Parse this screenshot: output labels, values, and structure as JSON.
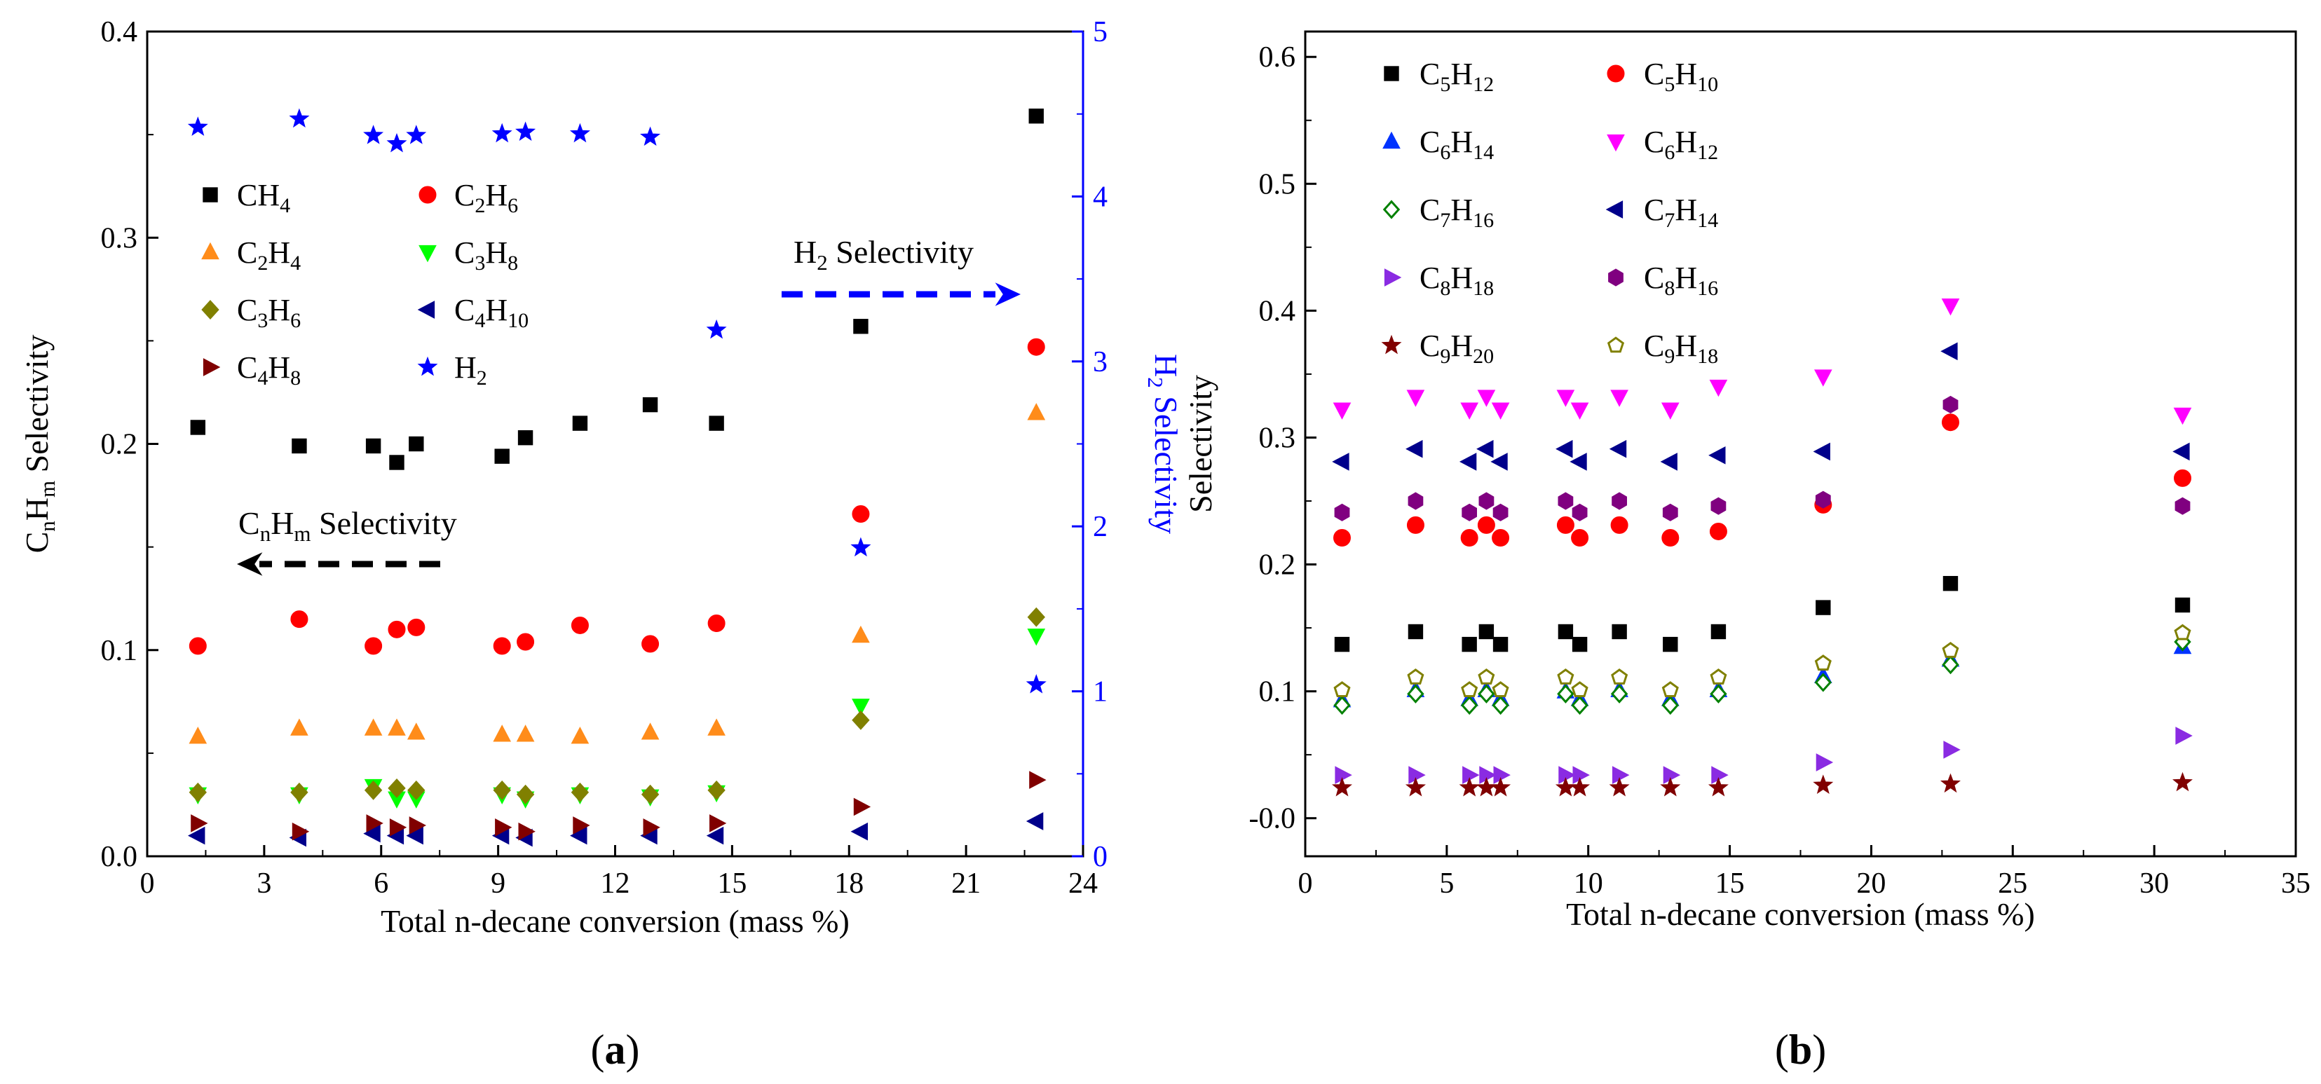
{
  "chart_data": [
    {
      "type": "scatter",
      "panel_label": {
        "open": "(",
        "letter": "a",
        "close": ")"
      },
      "xlabel": "Total n-decane conversion (mass %)",
      "ylabel_left": [
        {
          "t": "C"
        },
        {
          "t": "n",
          "sub": true
        },
        {
          "t": "H"
        },
        {
          "t": "m",
          "sub": true
        },
        {
          "t": "  Selectivity"
        }
      ],
      "ylabel_right": [
        {
          "t": "H"
        },
        {
          "t": "2",
          "sub": true
        },
        {
          "t": " Selectivity"
        }
      ],
      "xlim": [
        0,
        24
      ],
      "ylim_left": [
        0,
        0.4
      ],
      "ylim_right": [
        0,
        5
      ],
      "xticks": [
        "0",
        "3",
        "6",
        "9",
        "12",
        "15",
        "18",
        "21",
        "24"
      ],
      "yticks_left": [
        "0.0",
        "0.1",
        "0.2",
        "0.3",
        "0.4"
      ],
      "yticks_right": [
        "0",
        "1",
        "2",
        "3",
        "4",
        "5"
      ],
      "annotations": {
        "cnhm": [
          {
            "t": "C"
          },
          {
            "t": "n",
            "sub": true
          },
          {
            "t": "H"
          },
          {
            "t": "m",
            "sub": true
          },
          {
            "t": " Selectivity"
          }
        ],
        "h2": [
          {
            "t": "H"
          },
          {
            "t": "2",
            "sub": true
          },
          {
            "t": " Selectivity"
          }
        ]
      },
      "x": [
        1.3,
        3.9,
        5.8,
        6.4,
        6.9,
        9.1,
        9.7,
        11.1,
        12.9,
        14.6,
        18.3,
        22.8
      ],
      "series": [
        {
          "name": "CH4",
          "legend": [
            {
              "t": "CH"
            },
            {
              "t": "4",
              "sub": true
            }
          ],
          "marker": "square",
          "color": "#000000",
          "axis": "left",
          "values": [
            0.208,
            0.199,
            0.199,
            0.191,
            0.2,
            0.194,
            0.203,
            0.21,
            0.219,
            0.21,
            0.257,
            0.359
          ]
        },
        {
          "name": "C2H6",
          "legend": [
            {
              "t": "C"
            },
            {
              "t": "2",
              "sub": true
            },
            {
              "t": "H"
            },
            {
              "t": "6",
              "sub": true
            }
          ],
          "marker": "circle",
          "color": "#ff0000",
          "axis": "left",
          "values": [
            0.102,
            0.115,
            0.102,
            0.11,
            0.111,
            0.102,
            0.104,
            0.112,
            0.103,
            0.113,
            0.166,
            0.247
          ]
        },
        {
          "name": "C2H4",
          "legend": [
            {
              "t": "C"
            },
            {
              "t": "2",
              "sub": true
            },
            {
              "t": "H"
            },
            {
              "t": "4",
              "sub": true
            }
          ],
          "marker": "triangle-up",
          "color": "#ff8c1a",
          "axis": "left",
          "values": [
            0.058,
            0.062,
            0.062,
            0.062,
            0.06,
            0.059,
            0.059,
            0.058,
            0.06,
            0.062,
            0.107,
            0.215
          ]
        },
        {
          "name": "C3H8",
          "legend": [
            {
              "t": "C"
            },
            {
              "t": "3",
              "sub": true
            },
            {
              "t": "H"
            },
            {
              "t": "8",
              "sub": true
            }
          ],
          "marker": "triangle-down",
          "color": "#00ff00",
          "axis": "left",
          "values": [
            0.03,
            0.03,
            0.034,
            0.028,
            0.028,
            0.03,
            0.028,
            0.03,
            0.029,
            0.031,
            0.073,
            0.107
          ]
        },
        {
          "name": "C3H6",
          "legend": [
            {
              "t": "C"
            },
            {
              "t": "3",
              "sub": true
            },
            {
              "t": "H"
            },
            {
              "t": "6",
              "sub": true
            }
          ],
          "marker": "diamond",
          "color": "#808000",
          "axis": "left",
          "values": [
            0.031,
            0.031,
            0.032,
            0.033,
            0.032,
            0.032,
            0.03,
            0.031,
            0.03,
            0.032,
            0.066,
            0.116
          ]
        },
        {
          "name": "C4H10",
          "legend": [
            {
              "t": "C"
            },
            {
              "t": "4",
              "sub": true
            },
            {
              "t": "H"
            },
            {
              "t": "10",
              "sub": true
            }
          ],
          "marker": "triangle-left",
          "color": "#00008b",
          "axis": "left",
          "values": [
            0.01,
            0.009,
            0.011,
            0.01,
            0.01,
            0.01,
            0.009,
            0.01,
            0.01,
            0.01,
            0.012,
            0.017
          ]
        },
        {
          "name": "C4H8",
          "legend": [
            {
              "t": "C"
            },
            {
              "t": "4",
              "sub": true
            },
            {
              "t": "H"
            },
            {
              "t": "8",
              "sub": true
            }
          ],
          "marker": "triangle-right",
          "color": "#800000",
          "axis": "left",
          "values": [
            0.016,
            0.012,
            0.016,
            0.014,
            0.015,
            0.014,
            0.012,
            0.015,
            0.014,
            0.016,
            0.024,
            0.037
          ]
        },
        {
          "name": "H2",
          "legend": [
            {
              "t": "H"
            },
            {
              "t": "2",
              "sub": true
            }
          ],
          "marker": "star",
          "color": "#0000ff",
          "axis": "right",
          "values": [
            4.42,
            4.47,
            4.37,
            4.32,
            4.37,
            4.38,
            4.39,
            4.38,
            4.36,
            3.19,
            1.87,
            1.04
          ]
        }
      ]
    },
    {
      "type": "scatter",
      "panel_label": {
        "open": "(",
        "letter": "b",
        "close": ")"
      },
      "xlabel": "Total n-decane conversion (mass %)",
      "ylabel": "Selectivity",
      "xlim": [
        0,
        35
      ],
      "ylim": [
        -0.03,
        0.62
      ],
      "xticks": [
        "0",
        "5",
        "10",
        "15",
        "20",
        "25",
        "30",
        "35"
      ],
      "xtick_values": [
        0,
        5,
        10,
        15,
        20,
        25,
        30,
        35
      ],
      "yticks": [
        "-0.0",
        "0.1",
        "0.2",
        "0.3",
        "0.4",
        "0.5",
        "0.6"
      ],
      "ytick_values": [
        0,
        0.1,
        0.2,
        0.3,
        0.4,
        0.5,
        0.6
      ],
      "x": [
        1.3,
        3.9,
        5.8,
        6.4,
        6.9,
        9.2,
        9.7,
        11.1,
        12.9,
        14.6,
        18.3,
        22.8,
        31.0
      ],
      "series": [
        {
          "name": "C5H12",
          "legend": [
            {
              "t": "C"
            },
            {
              "t": "5",
              "sub": true
            },
            {
              "t": "H"
            },
            {
              "t": "12",
              "sub": true
            }
          ],
          "marker": "square",
          "color": "#000000",
          "values": [
            0.137,
            0.147,
            0.137,
            0.147,
            0.137,
            0.147,
            0.137,
            0.147,
            0.137,
            0.147,
            0.166,
            0.185,
            0.168
          ]
        },
        {
          "name": "C5H10",
          "legend": [
            {
              "t": "C"
            },
            {
              "t": "5",
              "sub": true
            },
            {
              "t": "H"
            },
            {
              "t": "10",
              "sub": true
            }
          ],
          "marker": "circle",
          "color": "#ff0000",
          "values": [
            0.221,
            0.231,
            0.221,
            0.231,
            0.221,
            0.231,
            0.221,
            0.231,
            0.221,
            0.226,
            0.247,
            0.312,
            0.268
          ]
        },
        {
          "name": "C6H14",
          "legend": [
            {
              "t": "C"
            },
            {
              "t": "6",
              "sub": true
            },
            {
              "t": "H"
            },
            {
              "t": "14",
              "sub": true
            }
          ],
          "marker": "triangle-up",
          "color": "#0033ff",
          "values": [
            0.093,
            0.101,
            0.094,
            0.101,
            0.094,
            0.1,
            0.094,
            0.101,
            0.094,
            0.101,
            0.112,
            0.125,
            0.135
          ]
        },
        {
          "name": "C6H12",
          "legend": [
            {
              "t": "C"
            },
            {
              "t": "6",
              "sub": true
            },
            {
              "t": "H"
            },
            {
              "t": "12",
              "sub": true
            }
          ],
          "marker": "triangle-down",
          "color": "#ff00ff",
          "values": [
            0.322,
            0.332,
            0.322,
            0.332,
            0.322,
            0.332,
            0.322,
            0.332,
            0.322,
            0.34,
            0.348,
            0.404,
            0.318
          ]
        },
        {
          "name": "C7H16",
          "legend": [
            {
              "t": "C"
            },
            {
              "t": "7",
              "sub": true
            },
            {
              "t": "H"
            },
            {
              "t": "16",
              "sub": true
            }
          ],
          "marker": "diamond-open",
          "color": "#008000",
          "values": [
            0.089,
            0.098,
            0.089,
            0.098,
            0.089,
            0.098,
            0.089,
            0.098,
            0.089,
            0.098,
            0.107,
            0.121,
            0.139
          ]
        },
        {
          "name": "C7H14",
          "legend": [
            {
              "t": "C"
            },
            {
              "t": "7",
              "sub": true
            },
            {
              "t": "H"
            },
            {
              "t": "14",
              "sub": true
            }
          ],
          "marker": "triangle-left",
          "color": "#00008b",
          "values": [
            0.281,
            0.291,
            0.281,
            0.291,
            0.281,
            0.291,
            0.281,
            0.291,
            0.281,
            0.286,
            0.289,
            0.368,
            0.289
          ]
        },
        {
          "name": "C8H18",
          "legend": [
            {
              "t": "C"
            },
            {
              "t": "8",
              "sub": true
            },
            {
              "t": "H"
            },
            {
              "t": "18",
              "sub": true
            }
          ],
          "marker": "triangle-right",
          "color": "#8a2be2",
          "values": [
            0.034,
            0.034,
            0.034,
            0.034,
            0.034,
            0.034,
            0.034,
            0.034,
            0.034,
            0.034,
            0.044,
            0.054,
            0.065
          ]
        },
        {
          "name": "C8H16",
          "legend": [
            {
              "t": "C"
            },
            {
              "t": "8",
              "sub": true
            },
            {
              "t": "H"
            },
            {
              "t": "16",
              "sub": true
            }
          ],
          "marker": "hexagon",
          "color": "#800080",
          "values": [
            0.241,
            0.25,
            0.241,
            0.25,
            0.241,
            0.25,
            0.241,
            0.25,
            0.241,
            0.246,
            0.251,
            0.326,
            0.246
          ]
        },
        {
          "name": "C9H20",
          "legend": [
            {
              "t": "C"
            },
            {
              "t": "9",
              "sub": true
            },
            {
              "t": "H"
            },
            {
              "t": "20",
              "sub": true
            }
          ],
          "marker": "star",
          "color": "#800000",
          "values": [
            0.024,
            0.024,
            0.024,
            0.024,
            0.024,
            0.024,
            0.024,
            0.024,
            0.024,
            0.024,
            0.026,
            0.027,
            0.028
          ]
        },
        {
          "name": "C9H18",
          "legend": [
            {
              "t": "C"
            },
            {
              "t": "9",
              "sub": true
            },
            {
              "t": "H"
            },
            {
              "t": "18",
              "sub": true
            }
          ],
          "marker": "pentagon-open",
          "color": "#808000",
          "values": [
            0.101,
            0.111,
            0.101,
            0.111,
            0.101,
            0.111,
            0.101,
            0.111,
            0.101,
            0.111,
            0.122,
            0.132,
            0.146
          ]
        }
      ]
    }
  ]
}
